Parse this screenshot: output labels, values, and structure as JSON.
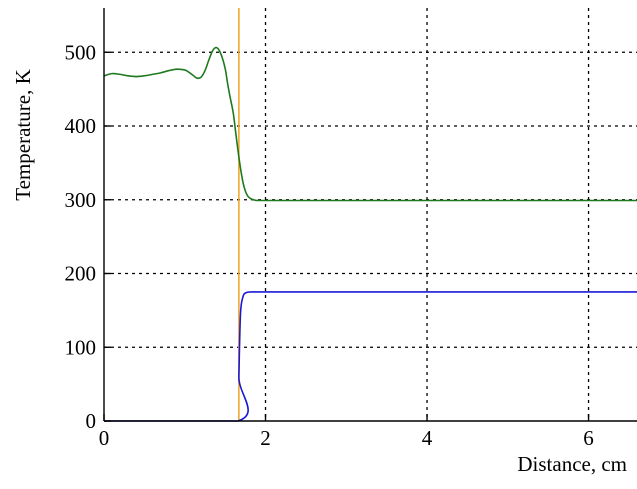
{
  "chart_data": {
    "type": "line",
    "title": "",
    "xlabel": "Distance, cm",
    "ylabel": "Temperature, K",
    "xlim": [
      0,
      6.6
    ],
    "ylim": [
      0,
      560
    ],
    "xticks": [
      0,
      2,
      4,
      6
    ],
    "yticks": [
      0,
      100,
      200,
      300,
      400,
      500
    ],
    "xtick_labels": [
      "0",
      "2",
      "4",
      "6"
    ],
    "ytick_labels": [
      "0",
      "100",
      "200",
      "300",
      "400",
      "500"
    ],
    "grid": true,
    "legend": "none",
    "vertical_marker": {
      "x": 1.67,
      "color": "#f0a830"
    },
    "series": [
      {
        "color": "#1e7a1e",
        "x": [
          0,
          0.1,
          0.2,
          0.3,
          0.4,
          0.5,
          0.6,
          0.7,
          0.8,
          0.9,
          1.0,
          1.05,
          1.1,
          1.15,
          1.2,
          1.25,
          1.3,
          1.35,
          1.4,
          1.45,
          1.5,
          1.53,
          1.56,
          1.6,
          1.63,
          1.66,
          1.69,
          1.72,
          1.75,
          1.78,
          1.81,
          1.85,
          1.9,
          1.95,
          2.0,
          2.2,
          3.0,
          4.0,
          5.0,
          6.0,
          6.6
        ],
        "y": [
          468,
          471,
          470,
          468,
          467,
          468,
          470,
          472,
          475,
          477,
          476,
          473,
          469,
          465,
          466,
          475,
          490,
          503,
          506,
          497,
          478,
          458,
          440,
          418,
          392,
          366,
          343,
          324,
          312,
          305,
          302,
          300,
          299,
          299,
          299,
          299,
          299,
          299,
          299,
          299,
          299
        ]
      },
      {
        "color": "#1a1ad6",
        "x": [
          0,
          1.66,
          1.67,
          1.69,
          1.72,
          1.76,
          1.85,
          2.0,
          3.0,
          4.0,
          5.0,
          6.0,
          6.6
        ],
        "y": [
          0,
          0,
          60,
          145,
          168,
          174,
          175,
          175,
          175,
          175,
          175,
          175,
          175
        ]
      }
    ]
  }
}
